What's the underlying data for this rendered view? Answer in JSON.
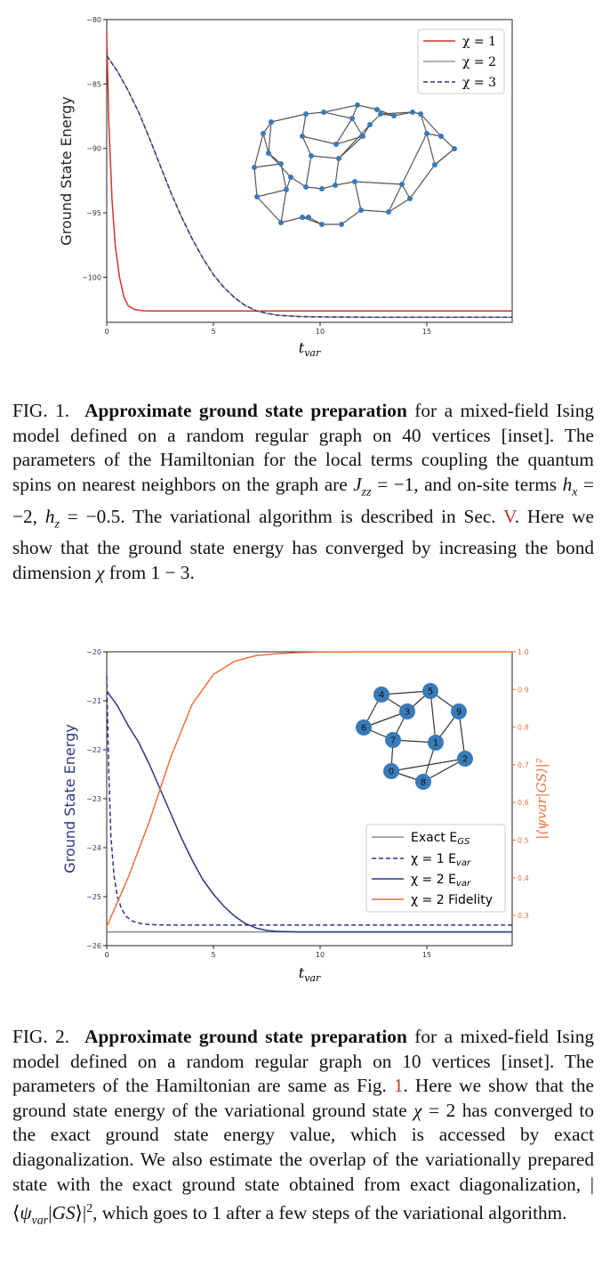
{
  "figure1": {
    "chart_data": {
      "type": "line",
      "ylabel": "Ground State Energy",
      "xlabel_base": "t",
      "xlabel_sub": "var",
      "xlim": [
        0,
        19
      ],
      "ylim": [
        -103.5,
        -80
      ],
      "x_ticks": [
        0,
        5,
        10,
        15
      ],
      "y_ticks": [
        -80,
        -85,
        -90,
        -95,
        -100
      ],
      "x_tick_labels": [
        "0",
        "5",
        "10",
        "15"
      ],
      "y_tick_labels": [
        "−80",
        "−85",
        "−90",
        "−95",
        "−100"
      ],
      "legend_position": "top-right",
      "series": [
        {
          "name": "χ = 1",
          "color": "#d0352b",
          "dash": "",
          "x": [
            0,
            0.1,
            0.25,
            0.4,
            0.6,
            0.8,
            1.0,
            1.3,
            1.7,
            2.2,
            3,
            5,
            10,
            19
          ],
          "y": [
            -81.0,
            -88.0,
            -94.0,
            -97.5,
            -100.0,
            -101.5,
            -102.2,
            -102.5,
            -102.6,
            -102.62,
            -102.62,
            -102.62,
            -102.62,
            -102.62
          ]
        },
        {
          "name": "χ = 2",
          "color": "#999999",
          "dash": "",
          "x": [
            0,
            0.5,
            1,
            1.5,
            2,
            2.5,
            3,
            3.5,
            4,
            4.5,
            5,
            5.5,
            6,
            6.5,
            7,
            7.5,
            8,
            9,
            10,
            12,
            15,
            19
          ],
          "y": [
            -82.8,
            -84.0,
            -85.5,
            -87.2,
            -89.2,
            -91.3,
            -93.4,
            -95.3,
            -97.0,
            -98.5,
            -99.8,
            -100.8,
            -101.6,
            -102.2,
            -102.6,
            -102.8,
            -102.95,
            -103.05,
            -103.08,
            -103.1,
            -103.1,
            -103.1
          ]
        },
        {
          "name": "χ = 3",
          "color": "#2c3580",
          "dash": "5,3",
          "x": [
            0,
            0.5,
            1,
            1.5,
            2,
            2.5,
            3,
            3.5,
            4,
            4.5,
            5,
            5.5,
            6,
            6.5,
            7,
            7.5,
            8,
            9,
            10,
            12,
            15,
            19
          ],
          "y": [
            -82.8,
            -84.0,
            -85.5,
            -87.2,
            -89.2,
            -91.3,
            -93.4,
            -95.3,
            -97.0,
            -98.5,
            -99.8,
            -100.8,
            -101.6,
            -102.2,
            -102.6,
            -102.8,
            -102.95,
            -103.05,
            -103.08,
            -103.1,
            -103.1,
            -103.1
          ]
        }
      ]
    },
    "caption": {
      "prefix": "FIG. 1.",
      "bold": "Approximate ground state preparation",
      "text_a": " for a mixed-field Ising model defined on a random regular graph on 40 vertices [inset]. The parameters of the Hamiltonian for the local terms coupling the quantum spins on nearest neighbors on the graph are ",
      "math_a": "J",
      "math_a_sub": "zz",
      "text_b": " = −1, and on-site terms ",
      "math_b": "h",
      "math_b_sub": "x",
      "text_c": " = −2, ",
      "math_c": "h",
      "math_c_sub": "z",
      "text_d": " = −0.5. The variational algorithm is described in Sec. ",
      "ref": "V",
      "text_e": ". Here we show that the ground state energy has converged by increasing the bond dimension ",
      "chi": "χ",
      "text_f": " from 1 − 3."
    }
  },
  "figure2": {
    "chart_data": {
      "type": "line",
      "ylabel": "Ground State Energy",
      "ylabel_right": "|⟨ψvar|GS⟩|²",
      "xlabel_base": "t",
      "xlabel_sub": "var",
      "xlim": [
        0,
        19
      ],
      "ylim": [
        -26,
        -20
      ],
      "ylim_right": [
        0.22,
        1.0
      ],
      "x_ticks": [
        0,
        5,
        10,
        15
      ],
      "y_ticks": [
        -20,
        -21,
        -22,
        -23,
        -24,
        -25,
        -26
      ],
      "y_ticks_right": [
        1.0,
        0.9,
        0.8,
        0.7,
        0.6,
        0.5,
        0.4,
        0.3
      ],
      "x_tick_labels": [
        "0",
        "5",
        "10",
        "15"
      ],
      "y_tick_labels": [
        "−20",
        "−21",
        "−22",
        "−23",
        "−24",
        "−25",
        "−26"
      ],
      "y_tick_labels_right": [
        "1.0",
        "0.9",
        "0.8",
        "0.7",
        "0.6",
        "0.5",
        "0.4",
        "0.3"
      ],
      "legend_position": "lower-right",
      "series": [
        {
          "name": "Exact E_GS",
          "label_base": "Exact E",
          "label_sub": "GS",
          "color": "#888888",
          "dash": "",
          "axis": "left",
          "x": [
            0,
            19
          ],
          "y": [
            -25.72,
            -25.72
          ]
        },
        {
          "name": "χ = 1 E_var",
          "label_base": "χ = 1 E",
          "label_sub": "var",
          "color": "#2c3580",
          "dash": "5,3",
          "axis": "left",
          "x": [
            0,
            0.1,
            0.2,
            0.35,
            0.5,
            0.7,
            0.9,
            1.2,
            1.6,
            2.0,
            3,
            5,
            10,
            19
          ],
          "y": [
            -20.5,
            -22.5,
            -23.8,
            -24.6,
            -25.0,
            -25.25,
            -25.4,
            -25.5,
            -25.55,
            -25.57,
            -25.58,
            -25.58,
            -25.58,
            -25.58
          ]
        },
        {
          "name": "χ = 2 E_var",
          "label_base": "χ = 2 E",
          "label_sub": "var",
          "color": "#2c3580",
          "dash": "",
          "axis": "left",
          "x": [
            0,
            0.5,
            1,
            1.5,
            2,
            2.5,
            3,
            3.5,
            4,
            4.5,
            5,
            5.5,
            6,
            6.5,
            7,
            7.5,
            8,
            9,
            10,
            12,
            15,
            19
          ],
          "y": [
            -20.8,
            -21.1,
            -21.5,
            -21.85,
            -22.3,
            -22.8,
            -23.3,
            -23.8,
            -24.25,
            -24.65,
            -24.95,
            -25.2,
            -25.4,
            -25.55,
            -25.64,
            -25.69,
            -25.71,
            -25.72,
            -25.72,
            -25.72,
            -25.72,
            -25.72
          ]
        },
        {
          "name": "χ = 2 Fidelity",
          "label_base": "χ = 2 Fidelity",
          "label_sub": "",
          "color": "#e8713a",
          "dash": "",
          "axis": "right",
          "x": [
            0,
            1,
            2,
            3,
            4,
            5,
            6,
            7,
            8,
            9,
            10,
            12,
            15,
            19
          ],
          "y": [
            0.27,
            0.4,
            0.55,
            0.72,
            0.86,
            0.94,
            0.975,
            0.99,
            0.995,
            0.998,
            0.999,
            1.0,
            1.0,
            1.0
          ]
        }
      ]
    },
    "inset_node_labels": [
      "0",
      "1",
      "2",
      "3",
      "4",
      "5",
      "6",
      "7",
      "8",
      "9"
    ],
    "caption": {
      "prefix": "FIG. 2.",
      "bold": "Approximate ground state preparation",
      "text_a": " for a mixed-field Ising model defined on a random regular graph on 10 vertices [inset]. The parameters of the Hamiltonian are same as Fig. ",
      "ref": "1",
      "text_b": ". Here we show that the ground state energy of the variational ground state ",
      "chi": "χ",
      "text_c": " = 2 has converged to the exact ground state energy value, which is accessed by exact diagonalization. We also estimate the overlap of the variationally prepared state with the exact ground state obtained from exact diagonalization, |⟨",
      "psi": "ψ",
      "psi_sub": "var",
      "text_d": "|",
      "gs": "GS",
      "text_e": "⟩|",
      "sup": "2",
      "text_f": ", which goes to 1 after a few steps of the variational algorithm."
    }
  }
}
